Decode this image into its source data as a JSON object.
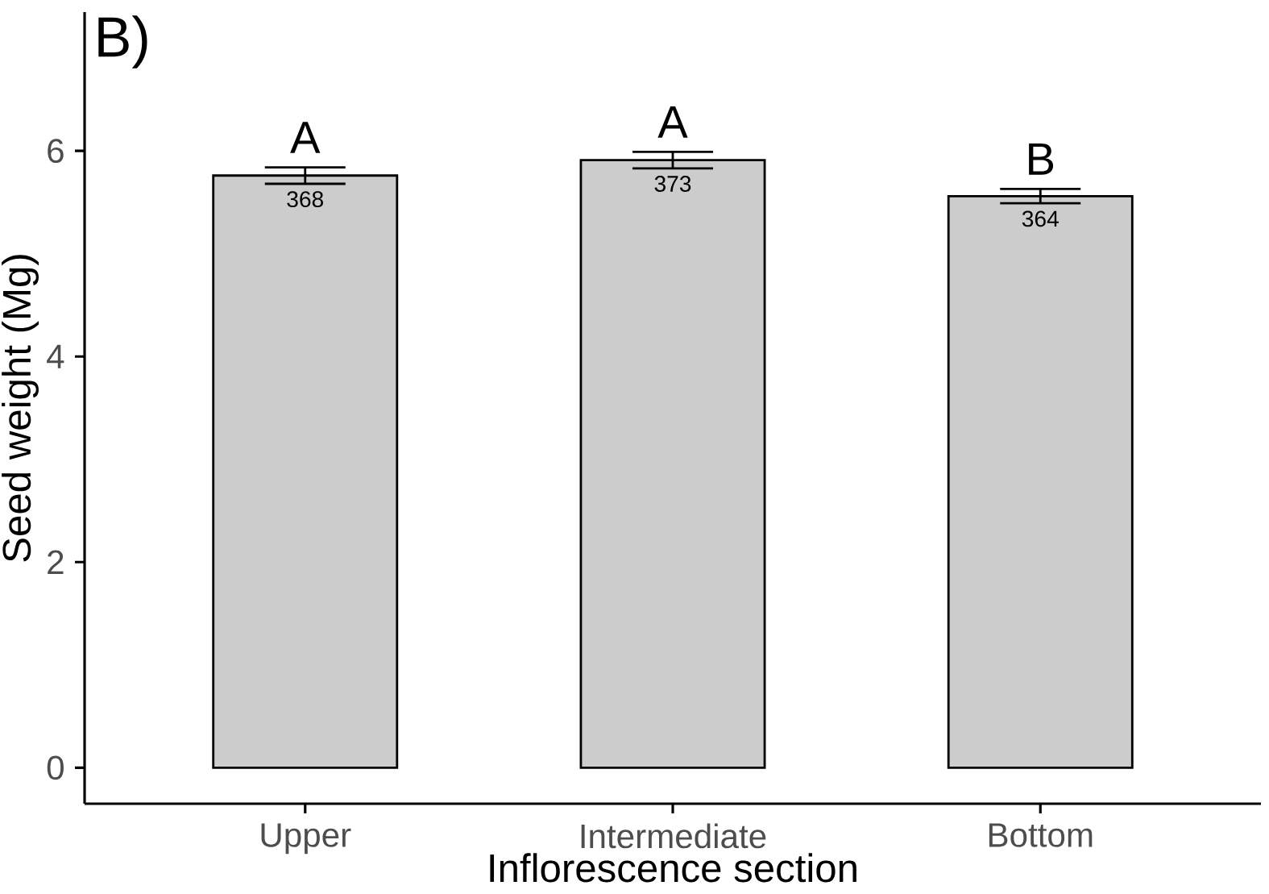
{
  "chart_data": {
    "type": "bar",
    "title": "B)",
    "xlabel": "Inflorescence section",
    "ylabel": "Seed weight (Mg)",
    "categories": [
      "Upper",
      "Intermediate",
      "Bottom"
    ],
    "values": [
      5.76,
      5.91,
      5.56
    ],
    "errors": [
      0.08,
      0.08,
      0.07
    ],
    "color": "#cccccc",
    "ylim": [
      -0.35,
      7.35
    ],
    "yticks": [
      0,
      2,
      4,
      6
    ],
    "grid": false,
    "annotations": [
      "A",
      "A",
      "B",
      "368",
      "373",
      "364"
    ]
  }
}
